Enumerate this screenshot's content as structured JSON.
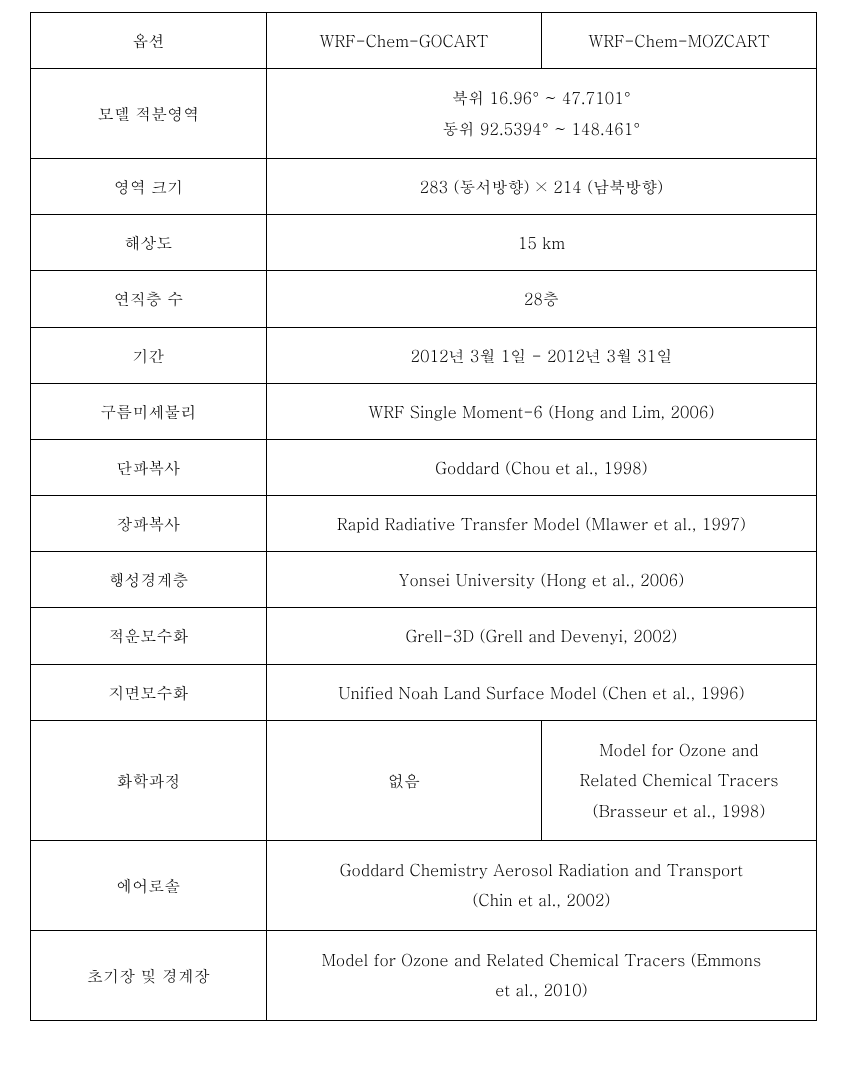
{
  "table": {
    "header": {
      "label": "옵션",
      "col1": "WRF-Chem-GOCART",
      "col2": "WRF-Chem-MOZCART"
    },
    "rows": [
      {
        "label": "모델 적분영역",
        "merged": true,
        "multiline": true,
        "value_line1": "북위 16.96° ~ 47.7101°",
        "value_line2": "동위 92.5394° ~ 148.461°"
      },
      {
        "label": "영역 크기",
        "merged": true,
        "value": "283 (동서방향) × 214 (남북방향)"
      },
      {
        "label": "해상도",
        "merged": true,
        "value": "15 km"
      },
      {
        "label": "연직층 수",
        "merged": true,
        "value": "28층"
      },
      {
        "label": "기간",
        "merged": true,
        "value": "2012년 3월 1일 - 2012년 3월 31일"
      },
      {
        "label": "구름미세물리",
        "merged": true,
        "value": "WRF Single Moment-6 (Hong and Lim, 2006)"
      },
      {
        "label": "단파복사",
        "merged": true,
        "value": "Goddard (Chou et al., 1998)"
      },
      {
        "label": "장파복사",
        "merged": true,
        "value": "Rapid Radiative Transfer Model (Mlawer et al., 1997)"
      },
      {
        "label": "행성경계층",
        "merged": true,
        "value": "Yonsei University (Hong et al., 2006)"
      },
      {
        "label": "적운모수화",
        "merged": true,
        "value": "Grell-3D (Grell and Devenyi, 2002)"
      },
      {
        "label": "지면모수화",
        "merged": true,
        "value": "Unified Noah Land Surface Model (Chen et al., 1996)"
      },
      {
        "label": "화학과정",
        "merged": false,
        "value1": "없음",
        "value2_line1": "Model for Ozone and",
        "value2_line2": "Related Chemical Tracers",
        "value2_line3": "(Brasseur et al., 1998)"
      },
      {
        "label": "에어로솔",
        "merged": true,
        "multiline": true,
        "value_line1": "Goddard Chemistry Aerosol Radiation and Transport",
        "value_line2": "(Chin et al., 2002)"
      },
      {
        "label": "초기장 및 경계장",
        "merged": true,
        "multiline": true,
        "value_line1": "Model for Ozone and Related Chemical Tracers (Emmons",
        "value_line2": "et al., 2010)"
      }
    ],
    "styling": {
      "border_color": "#000000",
      "background_color": "#ffffff",
      "text_color": "#000000",
      "font_size": 16,
      "cell_padding": 14,
      "line_height": 1.7
    }
  }
}
